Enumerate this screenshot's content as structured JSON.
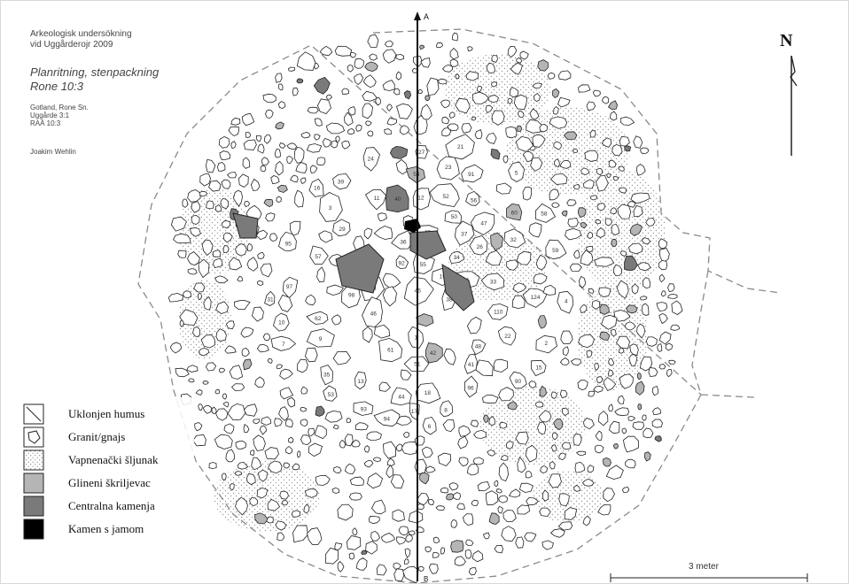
{
  "header": {
    "line1": "Arkeologisk undersökning",
    "line2": "vid Uggårderojr 2009",
    "title1": "Planritning, stenpackning",
    "title2": "Rone 10:3",
    "meta1": "Gotland, Rone Sn.",
    "meta2": "Uggårde 3:1",
    "meta3": "RAÄ 10:3",
    "author": "Joakim Wehlin"
  },
  "north_label": "N",
  "profile": {
    "top": "A",
    "bottom": "B"
  },
  "scale": {
    "label": "3 meter",
    "meters": 3
  },
  "legend": [
    {
      "label": "Uklonjen humus",
      "style": "hatch"
    },
    {
      "label": "Granit/gnajs",
      "style": "stone"
    },
    {
      "label": "Vapnenački šljunak",
      "style": "dotted"
    },
    {
      "label": "Glineni škriljevac",
      "style": "light-grey"
    },
    {
      "label": "Centralna kamenja",
      "style": "dark-grey"
    },
    {
      "label": "Kamen s jamom",
      "style": "black"
    }
  ],
  "stone_numbers": [
    "29",
    "27",
    "26",
    "24",
    "23",
    "22",
    "21",
    "19",
    "18",
    "17",
    "16",
    "15",
    "14",
    "13",
    "12",
    "11",
    "10",
    "9",
    "8",
    "7",
    "6",
    "5",
    "4",
    "3",
    "2",
    "1",
    "124",
    "110",
    "98",
    "96",
    "97",
    "95",
    "94",
    "93",
    "92",
    "91",
    "90",
    "62",
    "61",
    "60",
    "59",
    "58",
    "57",
    "56",
    "55",
    "54",
    "53",
    "52",
    "51",
    "50",
    "49",
    "48",
    "47",
    "46",
    "45",
    "44",
    "43",
    "42",
    "41",
    "40",
    "39",
    "38",
    "37",
    "36",
    "35",
    "34",
    "33",
    "32",
    "31",
    "30"
  ],
  "colors": {
    "outline": "#222222",
    "light_grey": "#b5b5b5",
    "dark_grey": "#7a7a7a",
    "black": "#000000",
    "dotted_fill": "#d9d9d9"
  }
}
